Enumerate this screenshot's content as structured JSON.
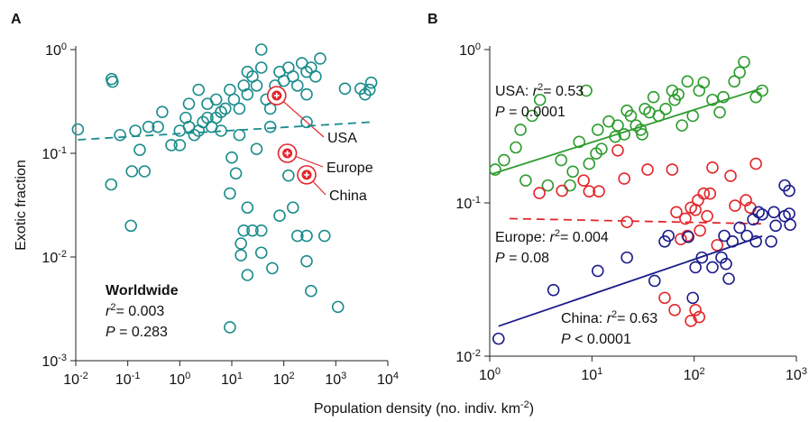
{
  "chart_data": [
    {
      "type": "scatter",
      "panel": "A",
      "y_label": "Exotic fraction",
      "log_x": true,
      "log_y": true,
      "xlim": [
        0.01,
        10000
      ],
      "ylim": [
        0.001,
        1
      ],
      "xticks": [
        {
          "value": 0.01,
          "label": "10",
          "exponent": "-2"
        },
        {
          "value": 0.1,
          "label": "10",
          "exponent": "-1"
        },
        {
          "value": 1,
          "label": "10",
          "exponent": "0"
        },
        {
          "value": 10,
          "label": "10",
          "exponent": "1"
        },
        {
          "value": 100,
          "label": "10",
          "exponent": "2"
        },
        {
          "value": 1000,
          "label": "10",
          "exponent": "3"
        },
        {
          "value": 10000,
          "label": "10",
          "exponent": "4"
        }
      ],
      "yticks": [
        {
          "value": 0.001,
          "label": "10",
          "exponent": "-3"
        },
        {
          "value": 0.01,
          "label": "10",
          "exponent": "-2"
        },
        {
          "value": 0.1,
          "label": "10",
          "exponent": "-1"
        },
        {
          "value": 1,
          "label": "10",
          "exponent": "0"
        }
      ],
      "series": [
        {
          "mode": "markers",
          "color": "#1b8c8c",
          "x": [
            0.011,
            0.17,
            0.049,
            0.051,
            0.071,
            0.048,
            0.115,
            0.12,
            0.21,
            0.14,
            0.25,
            0.38,
            0.46,
            0.69,
            1.0,
            1.0,
            1.5,
            1.9,
            2.3,
            2.8,
            3.4,
            4.1,
            5.0,
            5.0,
            6.2,
            7.5,
            9.2,
            11,
            14,
            17,
            20,
            25,
            30,
            37,
            46,
            55,
            68,
            83,
            100,
            123,
            150,
            183,
            223,
            275,
            334,
            408,
            500,
            275,
            37,
            20,
            14,
            10,
            12,
            9.2,
            20,
            30,
            55,
            100,
            123,
            150,
            83,
            183,
            275,
            606,
            17,
            25,
            37,
            15,
            15,
            20,
            37,
            60,
            275,
            334,
            1100,
            9.2,
            6.2,
            3.4,
            2.3,
            1.5,
            1.3,
            3000,
            3650,
            4450,
            4800,
            1500,
            275
          ],
          "y": [
            0.17,
            0.108,
            0.52,
            0.49,
            0.15,
            0.05,
            0.02,
            0.067,
            0.067,
            0.165,
            0.18,
            0.18,
            0.25,
            0.12,
            0.12,
            0.165,
            0.18,
            0.15,
            0.165,
            0.2,
            0.22,
            0.18,
            0.22,
            0.33,
            0.25,
            0.27,
            0.41,
            0.33,
            0.27,
            0.45,
            0.61,
            0.55,
            0.45,
            0.67,
            0.33,
            0.27,
            0.45,
            0.61,
            0.5,
            0.67,
            0.55,
            0.45,
            0.74,
            0.61,
            0.67,
            0.55,
            0.82,
            0.37,
            1.0,
            0.37,
            0.15,
            0.091,
            0.064,
            0.041,
            0.03,
            0.11,
            0.18,
            0.1,
            0.061,
            0.03,
            0.025,
            0.016,
            0.016,
            0.016,
            0.018,
            0.018,
            0.018,
            0.0135,
            0.0104,
            0.0067,
            0.011,
            0.0078,
            0.0091,
            0.0047,
            0.0033,
            0.0021,
            0.165,
            0.3,
            0.41,
            0.3,
            0.22,
            0.42,
            0.37,
            0.41,
            0.48,
            0.42,
            0.2
          ]
        },
        {
          "mode": "highlight",
          "color": "#e3262b",
          "x": [
            73,
            117,
            275
          ],
          "y": [
            0.36,
            0.1,
            0.062
          ],
          "labels": [
            "USA",
            "Europe",
            "China"
          ]
        },
        {
          "mode": "line",
          "dashed": true,
          "color": "#1b8c8c",
          "x": [
            0.011,
            4800
          ],
          "y": [
            0.135,
            0.2
          ]
        }
      ],
      "annotations": [
        {
          "color": "#1b5a56",
          "lines": [
            [
              {
                "text": "Worldwide",
                "bold": true
              }
            ],
            [
              {
                "text": "r",
                "italic": true
              },
              {
                "text": "2",
                "sup": true
              },
              {
                "text": "= 0.003"
              }
            ],
            [
              {
                "text": "P",
                "italic": true
              },
              {
                "text": " = 0.283"
              }
            ]
          ]
        }
      ]
    },
    {
      "type": "scatter",
      "panel": "B",
      "log_x": true,
      "log_y": true,
      "xlim": [
        1,
        1000
      ],
      "ylim": [
        0.01,
        1
      ],
      "xticks": [
        {
          "value": 1,
          "label": "10",
          "exponent": "0"
        },
        {
          "value": 10,
          "label": "10",
          "exponent": "1"
        },
        {
          "value": 100,
          "label": "10",
          "exponent": "2"
        },
        {
          "value": 1000,
          "label": "10",
          "exponent": "3"
        }
      ],
      "yticks": [
        {
          "value": 0.01,
          "label": "10",
          "exponent": "-2"
        },
        {
          "value": 0.1,
          "label": "10",
          "exponent": "-1"
        },
        {
          "value": 1,
          "label": "10",
          "exponent": "0"
        }
      ],
      "series": [
        {
          "mode": "markers",
          "color": "#2e9c2e",
          "x": [
            1.13,
            1.38,
            1.8,
            2.0,
            2.25,
            2.6,
            3.1,
            3.7,
            5.0,
            6.1,
            6.5,
            7.5,
            8.8,
            9.4,
            11,
            11.4,
            12.4,
            14.6,
            16.9,
            17.9,
            20.7,
            22,
            24,
            27,
            30,
            31,
            33,
            36.5,
            40,
            45,
            52.6,
            61,
            64.5,
            70,
            76,
            86,
            97,
            112,
            124,
            151,
            178,
            193,
            247,
            279,
            308,
            402,
            463
          ],
          "y": [
            0.165,
            0.19,
            0.23,
            0.3,
            0.14,
            0.37,
            0.47,
            0.13,
            0.19,
            0.13,
            0.16,
            0.25,
            0.54,
            0.18,
            0.21,
            0.3,
            0.225,
            0.34,
            0.27,
            0.32,
            0.28,
            0.4,
            0.37,
            0.32,
            0.3,
            0.28,
            0.41,
            0.39,
            0.49,
            0.37,
            0.41,
            0.54,
            0.47,
            0.51,
            0.32,
            0.62,
            0.37,
            0.54,
            0.61,
            0.47,
            0.39,
            0.49,
            0.62,
            0.71,
            0.83,
            0.49,
            0.54
          ]
        },
        {
          "mode": "line",
          "dashed": false,
          "color": "#2e9c2e",
          "x": [
            1.04,
            463
          ],
          "y": [
            0.154,
            0.56
          ]
        },
        {
          "mode": "markers",
          "color": "#e3262b",
          "x": [
            3.06,
            5.1,
            8.3,
            9.4,
            11.7,
            17.9,
            20.7,
            22,
            35,
            61,
            67,
            74,
            82,
            86,
            93,
            103,
            109,
            114,
            124,
            134,
            143,
            168,
            227,
            251,
            355,
            402,
            151,
            51.5,
            64.5,
            93,
            112,
            103,
            321
          ],
          "y": [
            0.116,
            0.12,
            0.14,
            0.119,
            0.119,
            0.22,
            0.144,
            0.075,
            0.165,
            0.165,
            0.087,
            0.058,
            0.079,
            0.061,
            0.093,
            0.09,
            0.104,
            0.066,
            0.115,
            0.082,
            0.115,
            0.053,
            0.15,
            0.096,
            0.093,
            0.18,
            0.17,
            0.024,
            0.02,
            0.017,
            0.018,
            0.02,
            0.104
          ]
        },
        {
          "mode": "line",
          "dashed": true,
          "color": "#e3262b",
          "x": [
            1.56,
            463
          ],
          "y": [
            0.079,
            0.073
          ]
        },
        {
          "mode": "markers",
          "color": "#1c1c8c",
          "x": [
            1.22,
            4.2,
            11.4,
            22,
            41,
            51.5,
            56,
            87.5,
            97,
            103,
            119,
            151,
            185,
            197,
            205,
            218,
            237,
            279,
            328,
            378,
            402,
            427,
            463,
            567,
            603,
            628,
            769,
            851,
            870,
            769,
            851
          ],
          "y": [
            0.013,
            0.027,
            0.036,
            0.044,
            0.031,
            0.056,
            0.061,
            0.06,
            0.024,
            0.038,
            0.044,
            0.038,
            0.044,
            0.061,
            0.04,
            0.032,
            0.056,
            0.069,
            0.061,
            0.078,
            0.056,
            0.087,
            0.084,
            0.056,
            0.087,
            0.071,
            0.082,
            0.085,
            0.072,
            0.13,
            0.12
          ]
        },
        {
          "mode": "line",
          "dashed": false,
          "color": "#1c1c8c",
          "x": [
            1.22,
            463
          ],
          "y": [
            0.0157,
            0.0607
          ]
        }
      ],
      "annotations": [
        {
          "color": "#2e9c2e",
          "lines": [
            [
              {
                "text": "USA: "
              },
              {
                "text": "r",
                "italic": true
              },
              {
                "text": "2",
                "sup": true
              },
              {
                "text": "= 0.53"
              }
            ],
            [
              {
                "text": "P",
                "italic": true
              },
              {
                "text": " = 0.0001"
              }
            ]
          ]
        },
        {
          "color": "#e3262b",
          "lines": [
            [
              {
                "text": "Europe: "
              },
              {
                "text": "r",
                "italic": true
              },
              {
                "text": "2",
                "sup": true
              },
              {
                "text": "= 0.004"
              }
            ],
            [
              {
                "text": "P",
                "italic": true
              },
              {
                "text": " = 0.08"
              }
            ]
          ]
        },
        {
          "color": "#1c1c8c",
          "lines": [
            [
              {
                "text": "China: "
              },
              {
                "text": "r",
                "italic": true
              },
              {
                "text": "2",
                "sup": true
              },
              {
                "text": "= 0.63"
              }
            ],
            [
              {
                "text": "P",
                "italic": true
              },
              {
                "text": " < 0.0001"
              }
            ]
          ]
        }
      ]
    }
  ],
  "x_label": [
    {
      "text": "Population density (no. indiv. km"
    },
    {
      "text": "-2",
      "sup": true
    },
    {
      "text": ")"
    }
  ]
}
